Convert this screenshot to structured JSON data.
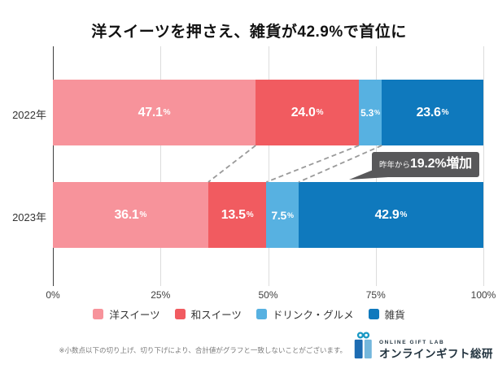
{
  "title": "洋スイーツを押さえ、雑貨が42.9%で首位に",
  "chart_data": {
    "type": "bar",
    "orientation": "horizontal",
    "stacked": true,
    "unit": "%",
    "categories": [
      "2022年",
      "2023年"
    ],
    "series": [
      {
        "name": "洋スイーツ",
        "color": "#F7939B",
        "values": [
          47.1,
          36.1
        ]
      },
      {
        "name": "和スイーツ",
        "color": "#F15B60",
        "values": [
          24.0,
          13.5
        ]
      },
      {
        "name": "ドリンク・グルメ",
        "color": "#57B1E1",
        "values": [
          5.3,
          7.5
        ]
      },
      {
        "name": "雑貨",
        "color": "#0F79BD",
        "values": [
          23.6,
          42.9
        ]
      }
    ],
    "x_ticks": [
      "0%",
      "25%",
      "50%",
      "75%",
      "100%"
    ],
    "xlim": [
      0,
      100
    ],
    "grid": true,
    "legend_position": "bottom",
    "annotation": {
      "prefix": "昨年から",
      "value": "19.2%増加"
    }
  },
  "footer": {
    "note": "※小数点以下の切り上げ、切り下げにより、合計値がグラフと一致しないことがございます。",
    "logo_small": "ONLINE GIFT LAB",
    "logo_main": "オンラインギフト総研",
    "logo_colors": {
      "bow": "#1898C4",
      "left_box": "#1D6CB2",
      "right_box": "#74B7DC"
    }
  }
}
